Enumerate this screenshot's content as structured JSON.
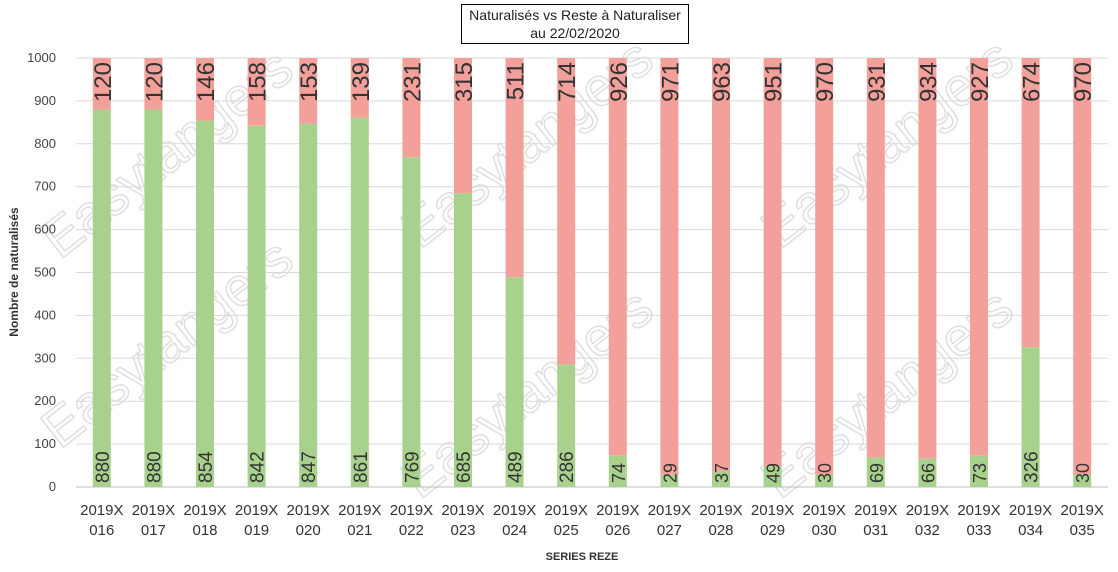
{
  "chart_data": {
    "type": "bar",
    "stacked": true,
    "title": "Naturalisés vs Reste à Naturaliser",
    "subtitle": "au 22/02/2020",
    "xlabel": "SERIES REZE",
    "ylabel": "Nombre de naturalisés",
    "ylim": [
      0,
      1000
    ],
    "yticks": [
      0,
      100,
      200,
      300,
      400,
      500,
      600,
      700,
      800,
      900,
      1000
    ],
    "grid": true,
    "categories": [
      [
        "2019X",
        "016"
      ],
      [
        "2019X",
        "017"
      ],
      [
        "2019X",
        "018"
      ],
      [
        "2019X",
        "019"
      ],
      [
        "2019X",
        "020"
      ],
      [
        "2019X",
        "021"
      ],
      [
        "2019X",
        "022"
      ],
      [
        "2019X",
        "023"
      ],
      [
        "2019X",
        "024"
      ],
      [
        "2019X",
        "025"
      ],
      [
        "2019X",
        "026"
      ],
      [
        "2019X",
        "027"
      ],
      [
        "2019X",
        "028"
      ],
      [
        "2019X",
        "029"
      ],
      [
        "2019X",
        "030"
      ],
      [
        "2019X",
        "031"
      ],
      [
        "2019X",
        "032"
      ],
      [
        "2019X",
        "033"
      ],
      [
        "2019X",
        "034"
      ],
      [
        "2019X",
        "035"
      ]
    ],
    "series": [
      {
        "color": "#a9d18e",
        "values": [
          880,
          880,
          854,
          842,
          847,
          861,
          769,
          685,
          489,
          286,
          74,
          29,
          37,
          49,
          30,
          69,
          66,
          73,
          326,
          30
        ]
      },
      {
        "color": "#f4a09a",
        "values": [
          120,
          120,
          146,
          158,
          153,
          139,
          231,
          315,
          511,
          714,
          926,
          971,
          963,
          951,
          970,
          931,
          934,
          927,
          674,
          970
        ]
      }
    ]
  },
  "watermark": "Easytangers"
}
